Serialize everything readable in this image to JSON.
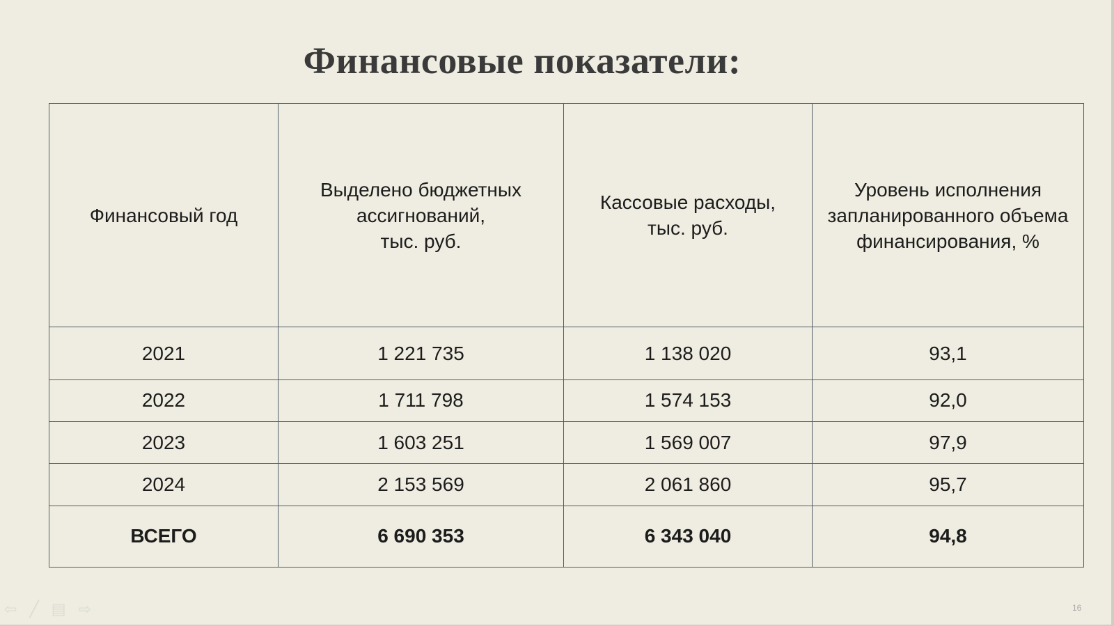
{
  "title": "Финансовые показатели:",
  "table": {
    "headers": [
      "Финансовый год",
      "Выделено бюджетных ассигнований,\nтыс. руб.",
      "Кассовые расходы,\nтыс. руб.",
      "Уровень исполнения запланированного объема финансирования, %"
    ],
    "rows": [
      [
        "2021",
        "1 221 735",
        "1 138 020",
        "93,1"
      ],
      [
        "2022",
        "1 711 798",
        "1 574 153",
        "92,0"
      ],
      [
        "2023",
        "1 603 251",
        "1 569 007",
        "97,9"
      ],
      [
        "2024",
        "2 153 569",
        "2 061 860",
        "95,7"
      ]
    ],
    "total": [
      "ВСЕГО",
      "6 690 353",
      "6 343 040",
      "94,8"
    ]
  },
  "footer": {
    "nav_icons": [
      "arrow-left-icon",
      "pen-icon",
      "menu-icon",
      "arrow-right-icon"
    ],
    "page_number": "16"
  },
  "colors": {
    "background": "#efede1",
    "border": "#4f5a66",
    "title": "#3a3a3a"
  }
}
